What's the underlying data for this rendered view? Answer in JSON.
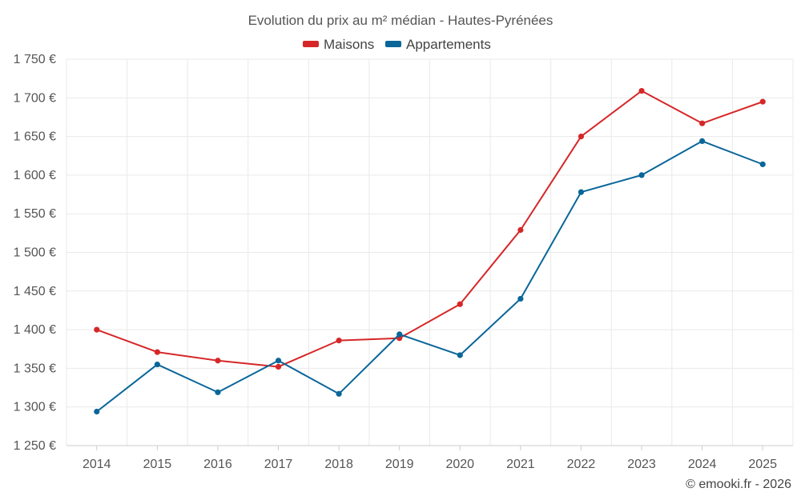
{
  "chart_data": {
    "type": "line",
    "title": "Evolution du prix au m² médian - Hautes-Pyrénées",
    "x": [
      "2014",
      "2015",
      "2016",
      "2017",
      "2018",
      "2019",
      "2020",
      "2021",
      "2022",
      "2023",
      "2024",
      "2025"
    ],
    "series": [
      {
        "name": "Maisons",
        "color": "#d62728",
        "values": [
          1400,
          1371,
          1360,
          1352,
          1386,
          1389,
          1433,
          1529,
          1650,
          1709,
          1667,
          1695
        ]
      },
      {
        "name": "Appartements",
        "color": "#0a6699",
        "values": [
          1294,
          1355,
          1319,
          1360,
          1317,
          1394,
          1367,
          1440,
          1578,
          1600,
          1644,
          1614
        ]
      }
    ],
    "ylim": [
      1250,
      1750
    ],
    "yticks": [
      1250,
      1300,
      1350,
      1400,
      1450,
      1500,
      1550,
      1600,
      1650,
      1700,
      1750
    ],
    "ytick_labels": [
      "1 250 €",
      "1 300 €",
      "1 350 €",
      "1 400 €",
      "1 450 €",
      "1 500 €",
      "1 550 €",
      "1 600 €",
      "1 650 €",
      "1 700 €",
      "1 750 €"
    ],
    "xlabel": "",
    "ylabel": "",
    "grid": true,
    "legend_position": "top-center"
  },
  "credit": "© emooki.fr - 2026"
}
